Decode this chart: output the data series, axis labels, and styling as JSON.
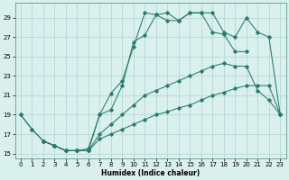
{
  "xlabel": "Humidex (Indice chaleur)",
  "background_color": "#d9f0ed",
  "grid_color": "#aed4cf",
  "line_color": "#2a7a6e",
  "xlim": [
    -0.5,
    23.5
  ],
  "ylim": [
    14.5,
    30.5
  ],
  "yticks": [
    15,
    17,
    19,
    21,
    23,
    25,
    27,
    29
  ],
  "xticks": [
    0,
    1,
    2,
    3,
    4,
    5,
    6,
    7,
    8,
    9,
    10,
    11,
    12,
    13,
    14,
    15,
    16,
    17,
    18,
    19,
    20,
    21,
    22,
    23
  ],
  "line1_x": [
    0,
    1,
    2,
    3,
    4,
    5,
    6,
    7,
    8,
    9,
    10,
    11,
    12,
    13,
    14,
    15,
    16,
    17,
    18,
    19,
    20,
    21,
    22,
    23
  ],
  "line1_y": [
    19,
    17.5,
    16.3,
    15.8,
    15.3,
    15.3,
    15.3,
    16.5,
    17.0,
    17.5,
    18.0,
    18.5,
    19.0,
    19.3,
    19.7,
    20.0,
    20.5,
    21.0,
    21.3,
    21.7,
    22.0,
    22.0,
    22.0,
    19.0
  ],
  "line2_x": [
    0,
    1,
    2,
    3,
    4,
    5,
    6,
    7,
    8,
    9,
    10,
    11,
    12,
    13,
    14,
    15,
    16,
    17,
    18,
    19,
    20,
    21,
    22,
    23
  ],
  "line2_y": [
    19,
    17.5,
    16.3,
    15.8,
    15.3,
    15.3,
    15.3,
    17.0,
    18.0,
    19.0,
    20.0,
    21.0,
    21.5,
    22.0,
    22.5,
    23.0,
    23.5,
    24.0,
    24.3,
    24.0,
    24.0,
    21.5,
    20.5,
    19.0
  ],
  "line3_x": [
    2,
    3,
    4,
    5,
    6,
    7,
    8,
    9,
    10,
    11,
    12,
    13,
    14,
    15,
    16,
    17,
    18,
    19,
    20
  ],
  "line3_y": [
    16.3,
    15.8,
    15.3,
    15.3,
    15.3,
    19.0,
    21.2,
    22.5,
    26.0,
    29.5,
    29.3,
    29.5,
    28.7,
    29.5,
    29.5,
    27.5,
    27.3,
    25.5,
    25.5
  ],
  "line4_x": [
    2,
    3,
    4,
    5,
    6,
    7,
    8,
    9,
    10,
    11,
    12,
    13,
    14,
    15,
    16,
    17,
    18,
    19,
    20,
    21,
    22,
    23
  ],
  "line4_y": [
    16.3,
    15.8,
    15.3,
    15.3,
    15.5,
    19.0,
    19.5,
    22.0,
    26.5,
    27.2,
    29.3,
    28.7,
    28.7,
    29.5,
    29.5,
    29.5,
    27.5,
    27.0,
    29.0,
    27.5,
    27.0,
    19.0
  ]
}
